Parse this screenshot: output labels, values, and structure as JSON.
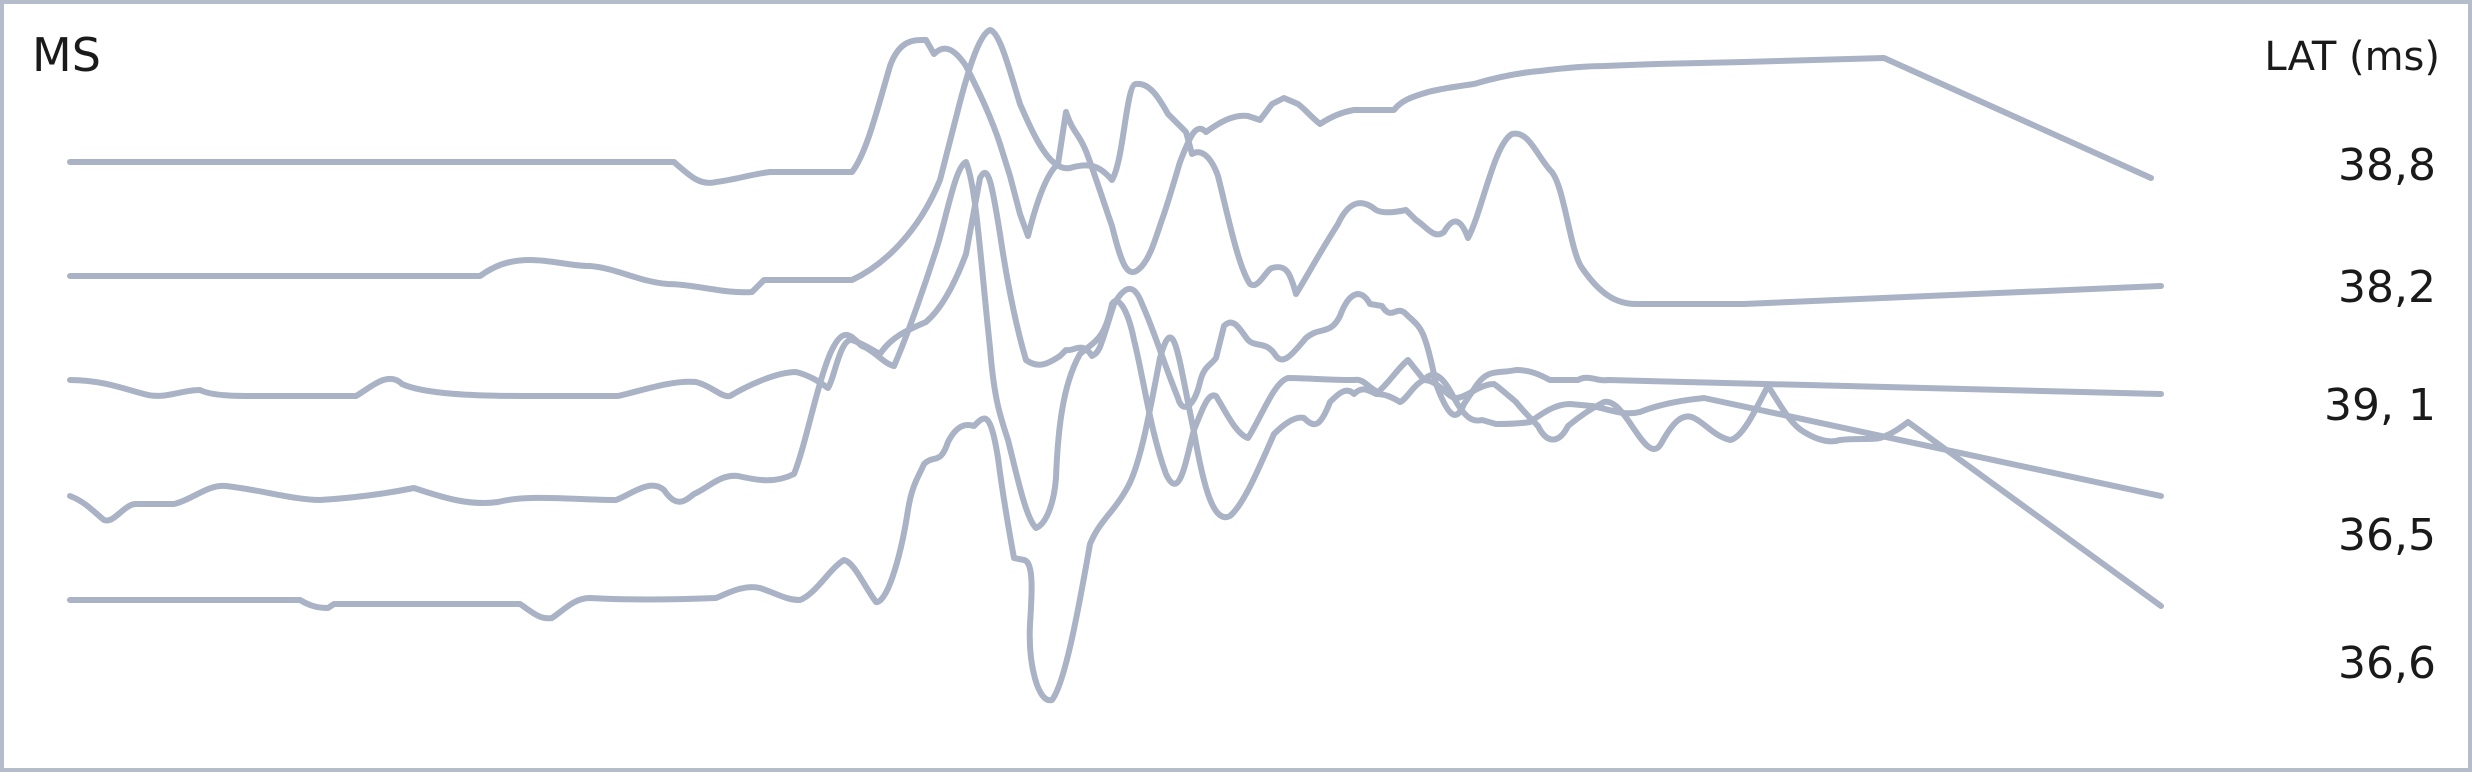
{
  "panel_label": "MS",
  "lat_header": "LAT (ms)",
  "chart_data": {
    "type": "line",
    "title": "MS",
    "value_column_label": "LAT (ms)",
    "line_color": "#a9b3c5",
    "frame_color": "#b6bdca",
    "traces": [
      {
        "lat": "38,8"
      },
      {
        "lat": "38,2"
      },
      {
        "lat": "39, 1"
      },
      {
        "lat": "36,5"
      },
      {
        "lat": "36,6"
      }
    ]
  }
}
